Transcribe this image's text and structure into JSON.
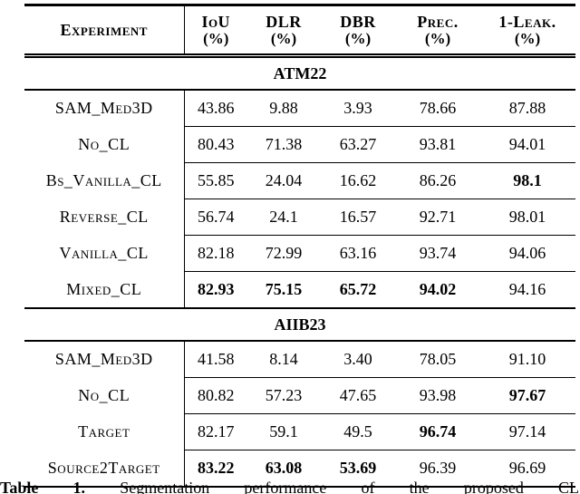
{
  "page": {
    "background": "#ffffff",
    "text_color": "#000000",
    "rule_color": "#000000"
  },
  "table": {
    "columns": [
      {
        "label": "Experiment",
        "unit": ""
      },
      {
        "label": "IoU",
        "unit": "(%)"
      },
      {
        "label": "DLR",
        "unit": "(%)"
      },
      {
        "label": "DBR",
        "unit": "(%)"
      },
      {
        "label": "Prec.",
        "unit": "(%)"
      },
      {
        "label": "1-Leak.",
        "unit": "(%)"
      }
    ],
    "sections": [
      {
        "name": "ATM22",
        "rows": [
          {
            "experiment": "SAM_Med3D",
            "values": [
              {
                "text": "43.86",
                "bold": false
              },
              {
                "text": "9.88",
                "bold": false
              },
              {
                "text": "3.93",
                "bold": false
              },
              {
                "text": "78.66",
                "bold": false
              },
              {
                "text": "87.88",
                "bold": false
              }
            ]
          },
          {
            "experiment": "No_CL",
            "values": [
              {
                "text": "80.43",
                "bold": false
              },
              {
                "text": "71.38",
                "bold": false
              },
              {
                "text": "63.27",
                "bold": false
              },
              {
                "text": "93.81",
                "bold": false
              },
              {
                "text": "94.01",
                "bold": false
              }
            ]
          },
          {
            "experiment": "Bs_Vanilla_CL",
            "values": [
              {
                "text": "55.85",
                "bold": false
              },
              {
                "text": "24.04",
                "bold": false
              },
              {
                "text": "16.62",
                "bold": false
              },
              {
                "text": "86.26",
                "bold": false
              },
              {
                "text": "98.1",
                "bold": true
              }
            ]
          },
          {
            "experiment": "Reverse_CL",
            "values": [
              {
                "text": "56.74",
                "bold": false
              },
              {
                "text": "24.1",
                "bold": false
              },
              {
                "text": "16.57",
                "bold": false
              },
              {
                "text": "92.71",
                "bold": false
              },
              {
                "text": "98.01",
                "bold": false
              }
            ]
          },
          {
            "experiment": "Vanilla_CL",
            "values": [
              {
                "text": "82.18",
                "bold": false
              },
              {
                "text": "72.99",
                "bold": false
              },
              {
                "text": "63.16",
                "bold": false
              },
              {
                "text": "93.74",
                "bold": false
              },
              {
                "text": "94.06",
                "bold": false
              }
            ]
          },
          {
            "experiment": "Mixed_CL",
            "values": [
              {
                "text": "82.93",
                "bold": true
              },
              {
                "text": "75.15",
                "bold": true
              },
              {
                "text": "65.72",
                "bold": true
              },
              {
                "text": "94.02",
                "bold": true
              },
              {
                "text": "94.16",
                "bold": false
              }
            ]
          }
        ]
      },
      {
        "name": "AIIB23",
        "rows": [
          {
            "experiment": "SAM_Med3D",
            "values": [
              {
                "text": "41.58",
                "bold": false
              },
              {
                "text": "8.14",
                "bold": false
              },
              {
                "text": "3.40",
                "bold": false
              },
              {
                "text": "78.05",
                "bold": false
              },
              {
                "text": "91.10",
                "bold": false
              }
            ]
          },
          {
            "experiment": "No_CL",
            "values": [
              {
                "text": "80.82",
                "bold": false
              },
              {
                "text": "57.23",
                "bold": false
              },
              {
                "text": "47.65",
                "bold": false
              },
              {
                "text": "93.98",
                "bold": false
              },
              {
                "text": "97.67",
                "bold": true
              }
            ]
          },
          {
            "experiment": "Target",
            "values": [
              {
                "text": "82.17",
                "bold": false
              },
              {
                "text": "59.1",
                "bold": false
              },
              {
                "text": "49.5",
                "bold": false
              },
              {
                "text": "96.74",
                "bold": true
              },
              {
                "text": "97.14",
                "bold": false
              }
            ]
          },
          {
            "experiment": "Source2Target",
            "values": [
              {
                "text": "83.22",
                "bold": true
              },
              {
                "text": "63.08",
                "bold": true
              },
              {
                "text": "53.69",
                "bold": true
              },
              {
                "text": "96.39",
                "bold": false
              },
              {
                "text": "96.69",
                "bold": false
              }
            ]
          }
        ]
      }
    ]
  },
  "caption": {
    "label": "Table 1.",
    "text": "Segmentation performance of the proposed CL"
  }
}
